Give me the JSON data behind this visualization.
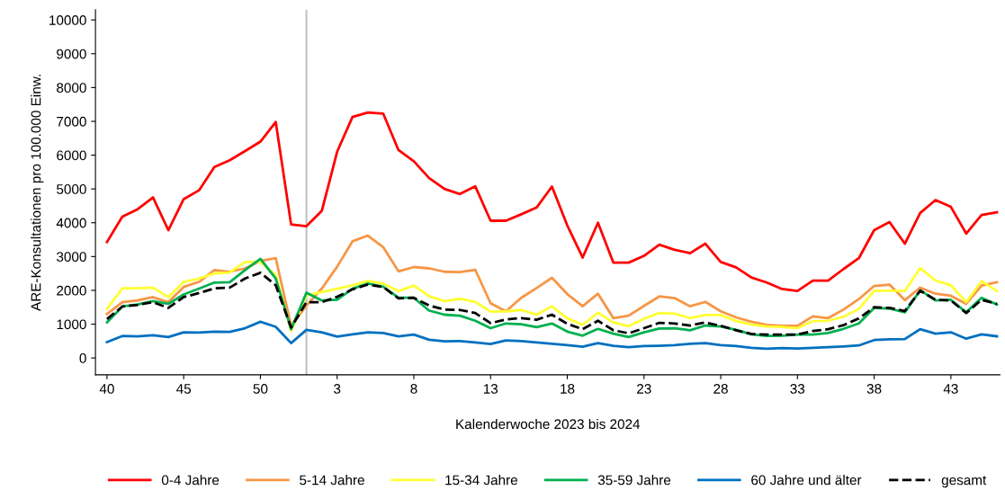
{
  "chart_data": {
    "type": "line",
    "xlabel": "Kalenderwoche 2023 bis 2024",
    "ylabel": "ARE-Konsultationen pro 100.000 Einw.",
    "categories": [
      "40",
      null,
      null,
      null,
      null,
      "45",
      null,
      null,
      null,
      null,
      "50",
      null,
      null,
      null,
      null,
      "3",
      null,
      null,
      null,
      null,
      "8",
      null,
      null,
      null,
      null,
      "13",
      null,
      null,
      null,
      null,
      "18",
      null,
      null,
      null,
      null,
      "23",
      null,
      null,
      null,
      null,
      "28",
      null,
      null,
      null,
      null,
      "33",
      null,
      null,
      null,
      null,
      "38",
      null,
      null,
      null,
      null,
      "43",
      null,
      null,
      null
    ],
    "ylim": [
      -500,
      10300
    ],
    "yticks": [
      0,
      1000,
      2000,
      3000,
      4000,
      5000,
      6000,
      7000,
      8000,
      9000,
      10000
    ],
    "legend": "bottom",
    "marker": "none",
    "line_style": "solid",
    "series": [
      {
        "name": "0-4 Jahre",
        "color": "#ff0000",
        "values": [
          3430,
          4180,
          4400,
          4750,
          3780,
          4700,
          4960,
          5650,
          5850,
          6120,
          6400,
          6980,
          3950,
          3900,
          4350,
          6100,
          7130,
          7260,
          7230,
          6150,
          5820,
          5320,
          5000,
          4850,
          5080,
          4060,
          4060,
          4250,
          4450,
          5070,
          3920,
          2970,
          4000,
          2820,
          2820,
          3020,
          3350,
          3200,
          3100,
          3380,
          2840,
          2680,
          2380,
          2230,
          2040,
          1980,
          2290,
          2290,
          2630,
          2950,
          3780,
          4020,
          3380,
          4290,
          4670,
          4470,
          3680,
          4230,
          4310
        ]
      },
      {
        "name": "5-14 Jahre",
        "color": "#f79646",
        "values": [
          1300,
          1650,
          1700,
          1800,
          1650,
          2100,
          2250,
          2600,
          2550,
          2650,
          2870,
          2950,
          950,
          1550,
          2050,
          2700,
          3450,
          3620,
          3280,
          2560,
          2690,
          2650,
          2550,
          2540,
          2610,
          1620,
          1380,
          1780,
          2070,
          2370,
          1890,
          1530,
          1900,
          1180,
          1250,
          1540,
          1820,
          1770,
          1530,
          1660,
          1380,
          1200,
          1070,
          980,
          950,
          950,
          1230,
          1180,
          1430,
          1740,
          2130,
          2170,
          1710,
          2080,
          1900,
          1840,
          1600,
          2140,
          2240
        ]
      },
      {
        "name": "15-34 Jahre",
        "color": "#ffff33",
        "values": [
          1450,
          2060,
          2060,
          2080,
          1800,
          2250,
          2350,
          2500,
          2530,
          2840,
          2840,
          2450,
          800,
          1850,
          1950,
          2050,
          2150,
          2280,
          2200,
          1980,
          2140,
          1830,
          1680,
          1750,
          1660,
          1370,
          1380,
          1420,
          1280,
          1530,
          1170,
          980,
          1340,
          1050,
          940,
          1160,
          1330,
          1310,
          1180,
          1270,
          1270,
          1090,
          990,
          930,
          920,
          880,
          1090,
          1100,
          1220,
          1450,
          1990,
          1990,
          1980,
          2660,
          2290,
          2150,
          1650,
          2270,
          1980
        ]
      },
      {
        "name": "35-59 Jahre",
        "color": "#00b050",
        "values": [
          1050,
          1520,
          1580,
          1680,
          1600,
          1880,
          2050,
          2230,
          2240,
          2600,
          2930,
          2350,
          850,
          1930,
          1700,
          1720,
          2050,
          2200,
          2110,
          1780,
          1780,
          1400,
          1280,
          1250,
          1100,
          880,
          1020,
          1000,
          910,
          1020,
          780,
          660,
          860,
          720,
          620,
          760,
          870,
          880,
          820,
          960,
          930,
          830,
          700,
          650,
          660,
          690,
          690,
          740,
          860,
          1020,
          1480,
          1460,
          1350,
          2000,
          1700,
          1720,
          1350,
          1780,
          1580
        ]
      },
      {
        "name": "60 Jahre und älter",
        "color": "#0070c0",
        "values": [
          470,
          650,
          640,
          670,
          620,
          760,
          750,
          780,
          770,
          880,
          1070,
          920,
          440,
          830,
          760,
          630,
          700,
          760,
          740,
          640,
          690,
          540,
          490,
          500,
          460,
          410,
          520,
          500,
          460,
          420,
          380,
          330,
          440,
          360,
          320,
          350,
          360,
          380,
          420,
          440,
          380,
          350,
          300,
          270,
          290,
          280,
          300,
          320,
          340,
          370,
          530,
          550,
          560,
          850,
          720,
          760,
          570,
          700,
          640
        ]
      },
      {
        "name": "gesamt",
        "color": "#000000",
        "line_style": "dashed",
        "values": [
          1150,
          1520,
          1570,
          1650,
          1480,
          1800,
          1920,
          2060,
          2080,
          2350,
          2520,
          2150,
          900,
          1650,
          1650,
          1810,
          2030,
          2170,
          2100,
          1760,
          1780,
          1550,
          1430,
          1420,
          1330,
          1030,
          1140,
          1180,
          1130,
          1280,
          1010,
          850,
          1100,
          820,
          730,
          880,
          1040,
          1020,
          960,
          1050,
          950,
          820,
          710,
          690,
          690,
          690,
          800,
          850,
          970,
          1170,
          1500,
          1480,
          1390,
          1990,
          1720,
          1700,
          1330,
          1720,
          1600
        ]
      }
    ]
  }
}
